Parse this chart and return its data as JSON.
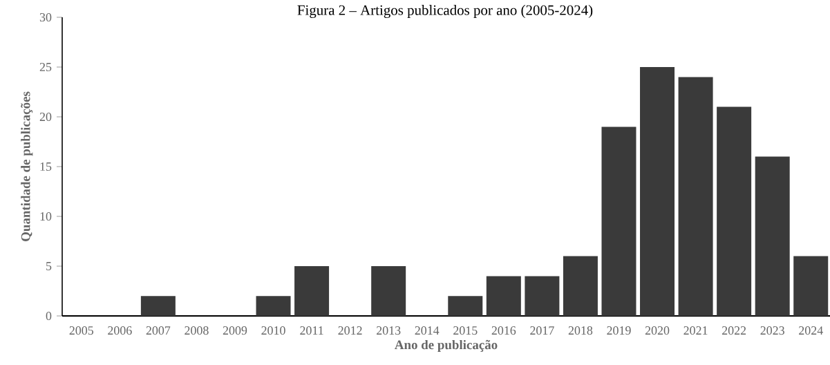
{
  "chart_data": {
    "type": "bar",
    "title": "Figura 2 – Artigos publicados por ano (2005-2024)",
    "xlabel": "Ano de publicação",
    "ylabel": "Quantidade de publicações",
    "categories": [
      "2005",
      "2006",
      "2007",
      "2008",
      "2009",
      "2010",
      "2011",
      "2012",
      "2013",
      "2014",
      "2015",
      "2016",
      "2017",
      "2018",
      "2019",
      "2020",
      "2021",
      "2022",
      "2023",
      "2024"
    ],
    "values": [
      0,
      0,
      2,
      0,
      0,
      2,
      5,
      0,
      5,
      0,
      2,
      4,
      4,
      6,
      19,
      25,
      24,
      21,
      16,
      6
    ],
    "color": "#3a3a3a",
    "ylim": [
      0,
      30
    ],
    "yticks": [
      0,
      5,
      10,
      15,
      20,
      25,
      30
    ],
    "grid": false
  }
}
